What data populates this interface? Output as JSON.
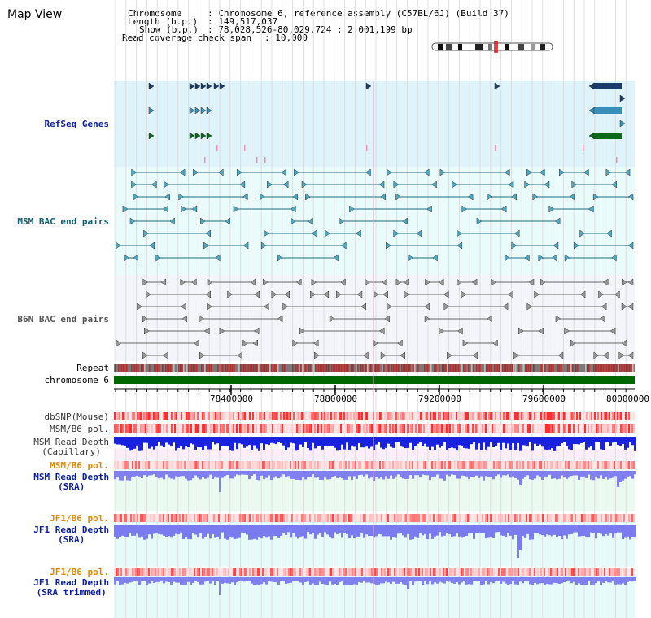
{
  "page": {
    "title": "Map View"
  },
  "info": {
    "chromosome_key": "Chromosome",
    "chromosome_val": ": Chromosome 6, reference assembly (C57BL/6J) (Build 37)",
    "length_key": "Length (b.p.)",
    "length_val": ": 149,517,037",
    "show_key": "Show (b.p.)",
    "show_val": ": 78,028,526-80,029,724 : 2,001,199 bp",
    "coverage_key": "Read coverage check span",
    "coverage_val": ": 10,000"
  },
  "tracks": {
    "refseq": "RefSeq Genes",
    "msm_bac": "MSM BAC end pairs",
    "b6n_bac": "B6N BAC end pairs",
    "repeat": "Repeat",
    "chromosome": "chromosome 6",
    "dbsnp": "dbSNP(Mouse)",
    "msm_pol": "MSM/B6 pol.",
    "msm_depth_cap_1": "MSM Read Depth",
    "msm_depth_cap_2": "(Capillary)",
    "msm_pol2": "MSM/B6 pol.",
    "msm_depth_sra_1": "MSM Read Depth",
    "msm_depth_sra_2": "(SRA)",
    "jf1_pol": "JF1/B6 pol.",
    "jf1_depth_sra_1": "JF1 Read Depth",
    "jf1_depth_sra_2": "(SRA)",
    "jf1_pol2": "JF1/B6 pol.",
    "jf1_depth_trim_1": "JF1 Read Depth",
    "jf1_depth_trim_2": "(SRA trimmed)"
  },
  "axis": {
    "ticks": [
      "78400000",
      "78800000",
      "79200000",
      "79600000",
      "80000000"
    ]
  },
  "colors": {
    "blue_label": "#0a1e9e",
    "teal_label": "#0f5d6e",
    "orange_label": "#e08a00",
    "chromosome": "#006600",
    "refseq_bg": "#dff3fb",
    "bac_bg": "#e9fbfb",
    "b6n_bg": "#f3f5fa",
    "depth_blue": "#1a22e0",
    "depth_sra": "#8080f0"
  },
  "icons": {
    "ideogram": "chromosome-ideogram-icon",
    "gene_arrow": "gene-arrow-icon"
  }
}
